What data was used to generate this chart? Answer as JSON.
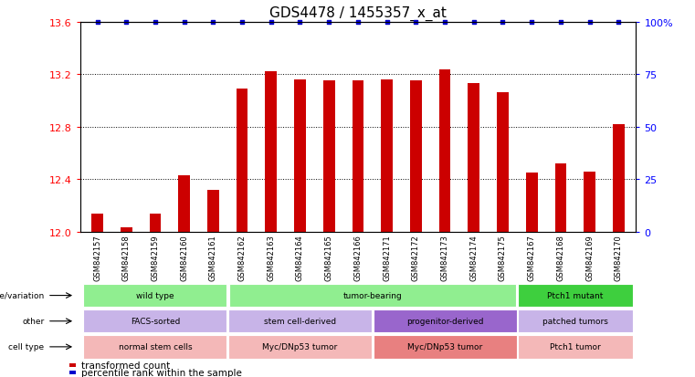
{
  "title": "GDS4478 / 1455357_x_at",
  "samples": [
    "GSM842157",
    "GSM842158",
    "GSM842159",
    "GSM842160",
    "GSM842161",
    "GSM842162",
    "GSM842163",
    "GSM842164",
    "GSM842165",
    "GSM842166",
    "GSM842171",
    "GSM842172",
    "GSM842173",
    "GSM842174",
    "GSM842175",
    "GSM842167",
    "GSM842168",
    "GSM842169",
    "GSM842170"
  ],
  "bar_values": [
    12.14,
    12.03,
    12.14,
    12.43,
    12.32,
    13.09,
    13.22,
    13.16,
    13.15,
    13.15,
    13.16,
    13.15,
    13.24,
    13.13,
    13.06,
    12.45,
    12.52,
    12.46,
    12.82
  ],
  "percentile_values": [
    100,
    100,
    100,
    100,
    100,
    100,
    100,
    100,
    100,
    100,
    100,
    100,
    100,
    100,
    100,
    100,
    100,
    100,
    100
  ],
  "ylim_left": [
    12.0,
    13.6
  ],
  "ylim_right": [
    0,
    100
  ],
  "yticks_left": [
    12.0,
    12.4,
    12.8,
    13.2,
    13.6
  ],
  "yticks_right": [
    0,
    25,
    50,
    75,
    100
  ],
  "bar_color": "#cc0000",
  "dot_color": "#0000cc",
  "title_fontsize": 11,
  "bar_width": 0.4,
  "xlim": [
    -0.6,
    18.6
  ],
  "annotation_rows": [
    {
      "label": "genotype/variation",
      "segments": [
        {
          "text": "wild type",
          "start": 0,
          "end": 5,
          "color": "#90ee90"
        },
        {
          "text": "tumor-bearing",
          "start": 5,
          "end": 15,
          "color": "#90ee90"
        },
        {
          "text": "Ptch1 mutant",
          "start": 15,
          "end": 19,
          "color": "#3ecf3e"
        }
      ]
    },
    {
      "label": "other",
      "segments": [
        {
          "text": "FACS-sorted",
          "start": 0,
          "end": 5,
          "color": "#c8b4e8"
        },
        {
          "text": "stem cell-derived",
          "start": 5,
          "end": 10,
          "color": "#c8b4e8"
        },
        {
          "text": "progenitor-derived",
          "start": 10,
          "end": 15,
          "color": "#9966cc"
        },
        {
          "text": "patched tumors",
          "start": 15,
          "end": 19,
          "color": "#c8b4e8"
        }
      ]
    },
    {
      "label": "cell type",
      "segments": [
        {
          "text": "normal stem cells",
          "start": 0,
          "end": 5,
          "color": "#f4b8b8"
        },
        {
          "text": "Myc/DNp53 tumor",
          "start": 5,
          "end": 10,
          "color": "#f4b8b8"
        },
        {
          "text": "Myc/DNp53 tumor",
          "start": 10,
          "end": 15,
          "color": "#e88080"
        },
        {
          "text": "Ptch1 tumor",
          "start": 15,
          "end": 19,
          "color": "#f4b8b8"
        }
      ]
    }
  ],
  "legend_items": [
    {
      "color": "#cc0000",
      "label": "transformed count"
    },
    {
      "color": "#0000cc",
      "label": "percentile rank within the sample"
    }
  ],
  "xtick_bg": "#d0d0d0",
  "spine_color": "#888888"
}
